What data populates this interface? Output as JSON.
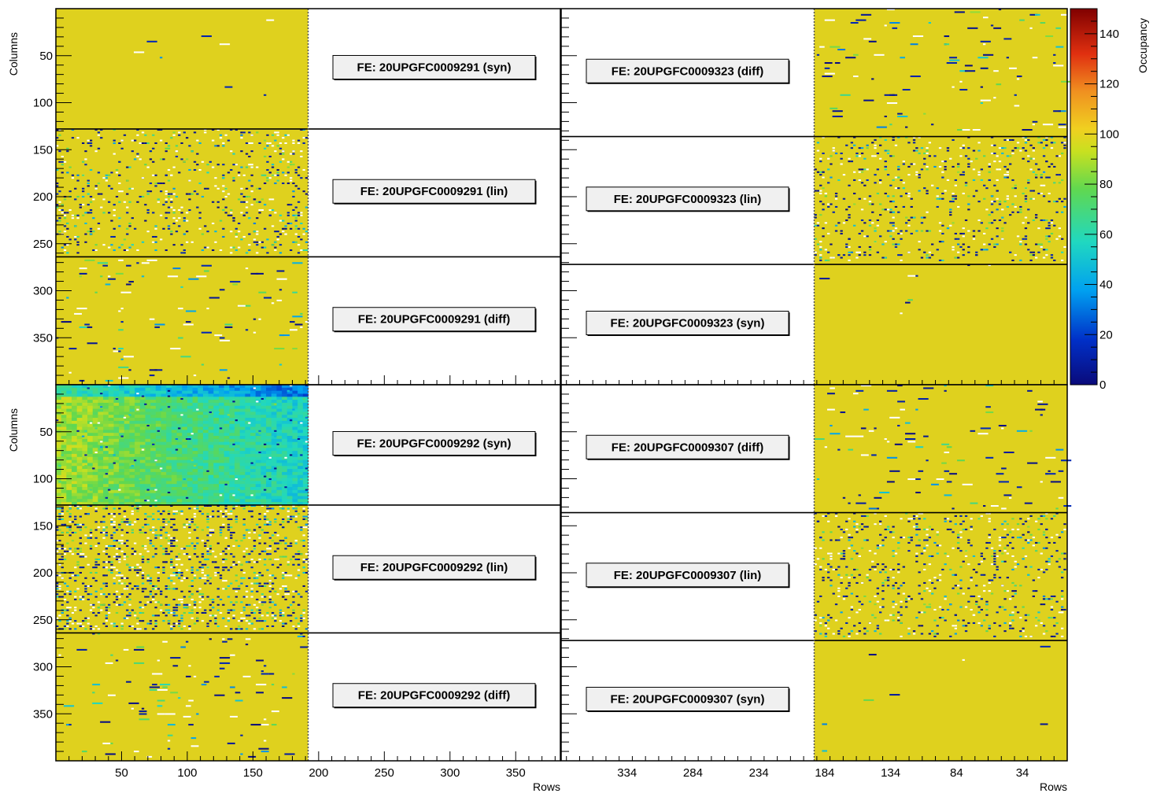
{
  "chart_data": {
    "type": "heatmap",
    "xlabel": "Rows",
    "ylabel": "Columns",
    "colorbar": {
      "label": "Occupancy",
      "range": [
        0,
        150
      ],
      "ticks": [
        "0",
        "20",
        "40",
        "60",
        "80",
        "100",
        "120",
        "140"
      ],
      "colormap": "rainbow (dark blue → cyan → green → yellow → red → dark red)"
    },
    "value_range": [
      0,
      150
    ],
    "panels": [
      {
        "id": "top-left",
        "x_range": [
          0,
          384
        ],
        "x_ticks": [
          "50",
          "100",
          "150",
          "200",
          "250",
          "300",
          "350"
        ],
        "y_range": [
          0,
          400
        ],
        "y_ticks": [
          "50",
          "100",
          "150",
          "200",
          "250",
          "300",
          "350"
        ],
        "filled_x_range": [
          0,
          192
        ],
        "blocks": [
          {
            "label": "FE: 20UPGFC0009291 (syn)",
            "y_range": [
              0,
              128
            ],
            "base_occupancy": 100,
            "noise": "low"
          },
          {
            "label": "FE: 20UPGFC0009291 (lin)",
            "y_range": [
              128,
              264
            ],
            "base_occupancy": 100,
            "noise": "high"
          },
          {
            "label": "FE: 20UPGFC0009291 (diff)",
            "y_range": [
              264,
              400
            ],
            "base_occupancy": 100,
            "noise": "medium"
          }
        ]
      },
      {
        "id": "top-right",
        "x_range": [
          384,
          0
        ],
        "x_ticks": [],
        "y_range": [
          0,
          400
        ],
        "filled_x_range": [
          192,
          0
        ],
        "blocks": [
          {
            "label": "FE: 20UPGFC0009323 (diff)",
            "y_range": [
              0,
              136
            ],
            "base_occupancy": 100,
            "noise": "medium"
          },
          {
            "label": "FE: 20UPGFC0009323 (lin)",
            "y_range": [
              136,
              272
            ],
            "base_occupancy": 100,
            "noise": "high"
          },
          {
            "label": "FE: 20UPGFC0009323 (syn)",
            "y_range": [
              272,
              400
            ],
            "base_occupancy": 100,
            "noise": "low"
          }
        ]
      },
      {
        "id": "bottom-left",
        "x_range": [
          0,
          384
        ],
        "x_ticks": [
          "50",
          "100",
          "150",
          "200",
          "250",
          "300",
          "350"
        ],
        "y_range": [
          0,
          400
        ],
        "y_ticks": [
          "50",
          "100",
          "150",
          "200",
          "250",
          "300",
          "350"
        ],
        "filled_x_range": [
          0,
          192
        ],
        "blocks": [
          {
            "label": "FE: 20UPGFC0009292 (syn)",
            "y_range": [
              0,
              128
            ],
            "base_occupancy": 90,
            "noise": "gradient"
          },
          {
            "label": "FE: 20UPGFC0009292 (lin)",
            "y_range": [
              128,
              264
            ],
            "base_occupancy": 100,
            "noise": "very-high"
          },
          {
            "label": "FE: 20UPGFC0009292 (diff)",
            "y_range": [
              264,
              400
            ],
            "base_occupancy": 100,
            "noise": "medium"
          }
        ]
      },
      {
        "id": "bottom-right",
        "x_range": [
          384,
          0
        ],
        "x_ticks": [
          "334",
          "284",
          "234",
          "184",
          "134",
          "84",
          "34"
        ],
        "y_range": [
          0,
          400
        ],
        "filled_x_range": [
          192,
          0
        ],
        "blocks": [
          {
            "label": "FE: 20UPGFC0009307 (diff)",
            "y_range": [
              0,
              136
            ],
            "base_occupancy": 100,
            "noise": "medium"
          },
          {
            "label": "FE: 20UPGFC0009307 (lin)",
            "y_range": [
              136,
              272
            ],
            "base_occupancy": 100,
            "noise": "high"
          },
          {
            "label": "FE: 20UPGFC0009307 (syn)",
            "y_range": [
              272,
              400
            ],
            "base_occupancy": 100,
            "noise": "low"
          }
        ]
      }
    ]
  }
}
